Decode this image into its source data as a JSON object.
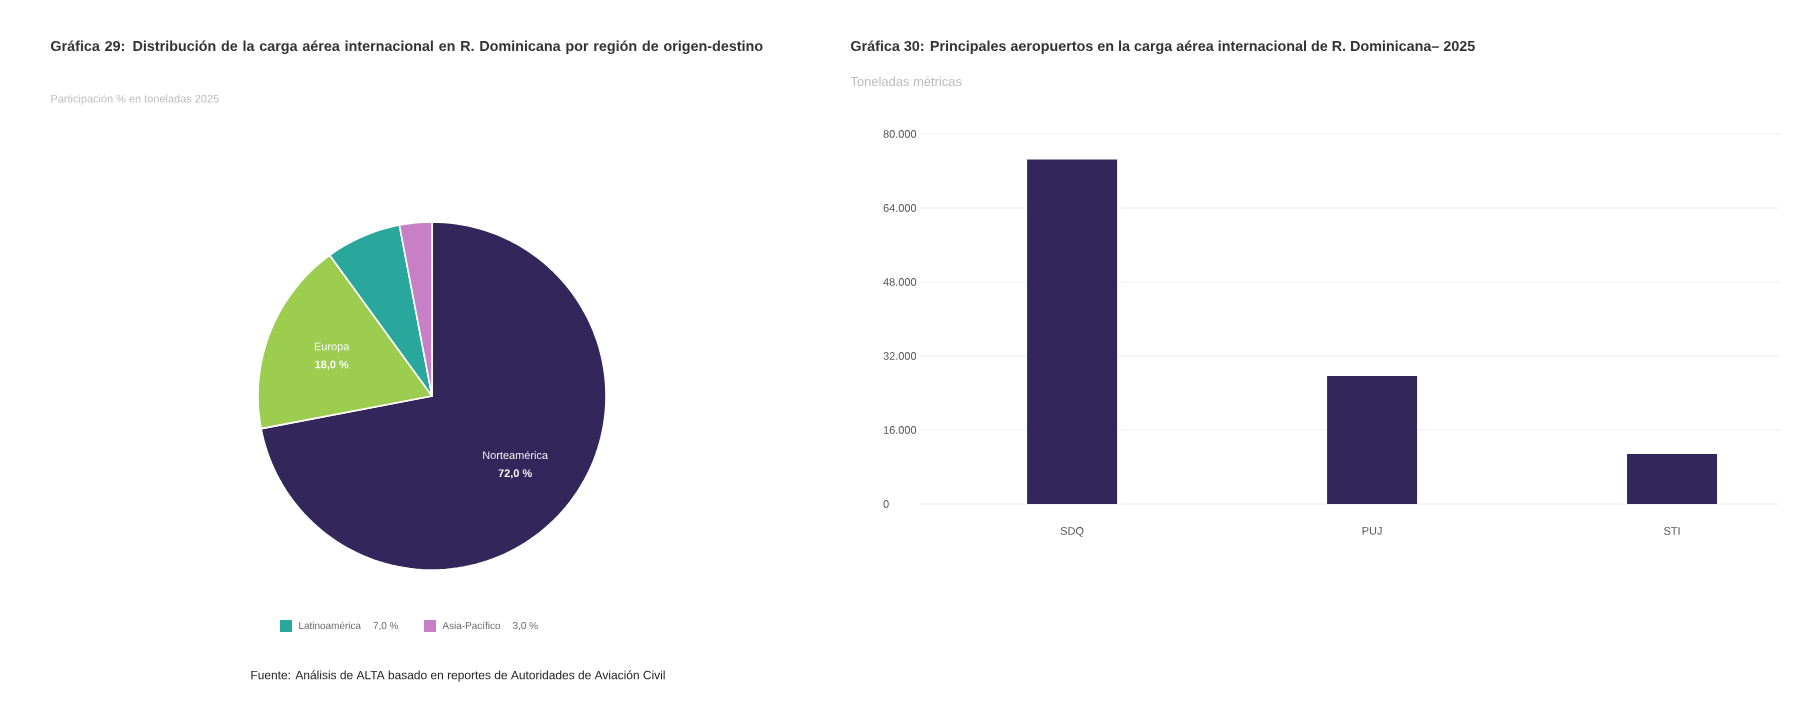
{
  "chart_data": [
    {
      "type": "pie",
      "title": "Gráfica 29: Distribución de la carga aérea internacional en R. Dominicana por región de origen-destino",
      "subtitle": "Participación % en toneladas 2025",
      "categories": [
        "Norteamérica",
        "Europa",
        "Latinoamérica",
        "Asia-Pacífico"
      ],
      "values": [
        72,
        18,
        7,
        3
      ],
      "value_labels": [
        "72,0 %",
        "18,0 %",
        "7,0 %",
        "3,0 %"
      ],
      "colors": [
        "#33265a",
        "#9ccd4f",
        "#2aa79c",
        "#c77fc6"
      ],
      "legend": "bottom",
      "annotations": [
        "Fuente: Análisis de ALTA basado en reportes de Autoridades de Aviación Civil"
      ]
    },
    {
      "type": "bar",
      "title": "Gráfica 30: Principales aeropuertos en la carga aérea internacional de R. Dominicana– 2025",
      "subtitle": "Toneladas métricas",
      "categories": [
        "SDQ",
        "PUJ",
        "STI"
      ],
      "values": [
        74500,
        27700,
        10800
      ],
      "color": "#33265a",
      "ylim": [
        0,
        80000
      ],
      "yticks": [
        0,
        {
          "value": 16000,
          "label": "16.000"
        },
        {
          "value": 32000,
          "label": "32.000"
        },
        {
          "value": 48000,
          "label": "48.000"
        },
        {
          "value": 64000,
          "label": "64.000"
        },
        {
          "value": 80000,
          "label": "80.000"
        }
      ],
      "grid": "y"
    }
  ]
}
